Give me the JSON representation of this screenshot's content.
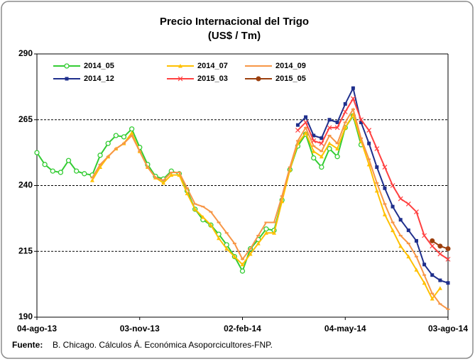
{
  "chart_data": {
    "type": "line",
    "title": "Precio Internacional del Trigo",
    "subtitle": "(US$ / Tm)",
    "source_label": "Fuente:",
    "source": "B. Chicago. Cálculos Á. Económica Asoporcicultores-FNP.",
    "categories": [
      "04-ago-13",
      null,
      null,
      null,
      null,
      null,
      null,
      null,
      null,
      null,
      null,
      null,
      null,
      "03-nov-13",
      null,
      null,
      null,
      null,
      null,
      null,
      null,
      null,
      null,
      null,
      null,
      null,
      "02-feb-14",
      null,
      null,
      null,
      null,
      null,
      null,
      null,
      null,
      null,
      null,
      null,
      null,
      "04-may-14",
      null,
      null,
      null,
      null,
      null,
      null,
      null,
      null,
      null,
      null,
      null,
      null,
      "03-ago-14"
    ],
    "ylim": [
      190,
      290
    ],
    "yticks": [
      190,
      215,
      240,
      265,
      290
    ],
    "grid": true,
    "legend": "top-left",
    "series": [
      {
        "name": "2014_05",
        "color": "#33cc33",
        "marker": "open-circle",
        "values": [
          252.5,
          248,
          245.5,
          245,
          249.5,
          245.5,
          244.5,
          244,
          251.5,
          256,
          259,
          258.5,
          261.5,
          254.5,
          248,
          243.5,
          242.5,
          245.5,
          244.5,
          238,
          231,
          227,
          225,
          221.5,
          217.5,
          213,
          207.5,
          216,
          219.5,
          223.5,
          223,
          234.5,
          246,
          255,
          259.5,
          250.5,
          247,
          254,
          251,
          262,
          266.5,
          255.5,
          null,
          null,
          null,
          null,
          null,
          null,
          null,
          null,
          null,
          null,
          null
        ]
      },
      {
        "name": "2014_07",
        "color": "#ffc000",
        "marker": "triangle",
        "values": [
          null,
          null,
          null,
          null,
          null,
          null,
          null,
          242,
          247,
          251,
          254,
          256,
          260,
          253,
          247,
          243,
          241,
          244,
          244,
          237,
          231,
          228,
          225,
          220,
          216,
          213,
          210,
          214,
          218,
          222,
          222,
          234,
          246,
          256,
          260,
          253,
          251,
          256,
          254,
          262,
          267,
          257,
          248,
          238,
          229,
          223,
          217,
          213,
          208,
          203,
          197,
          201,
          null
        ]
      },
      {
        "name": "2014_09",
        "color": "#f79646",
        "marker": "dash",
        "values": [
          null,
          null,
          null,
          null,
          null,
          null,
          null,
          243,
          248,
          251,
          254,
          256,
          259,
          253,
          247,
          243,
          242,
          245,
          245,
          239,
          233,
          232,
          230,
          226,
          222,
          218,
          212,
          216,
          221,
          226,
          226,
          236,
          247,
          257,
          262,
          255,
          253,
          259,
          256,
          264,
          269,
          258,
          250,
          241,
          233,
          226,
          221,
          218,
          213,
          206,
          199,
          195,
          193
        ]
      },
      {
        "name": "2014_12",
        "color": "#1f2f8c",
        "marker": "square",
        "values": [
          null,
          null,
          null,
          null,
          null,
          null,
          null,
          null,
          null,
          null,
          null,
          null,
          null,
          null,
          null,
          null,
          null,
          null,
          null,
          null,
          null,
          null,
          null,
          null,
          null,
          null,
          null,
          null,
          null,
          null,
          null,
          null,
          null,
          263,
          266,
          259,
          258,
          265,
          264,
          271,
          277,
          264,
          256,
          247,
          239,
          232,
          227,
          223,
          219,
          210,
          206,
          204,
          203
        ]
      },
      {
        "name": "2015_03",
        "color": "#ff4040",
        "marker": "cross",
        "values": [
          null,
          null,
          null,
          null,
          null,
          null,
          null,
          null,
          null,
          null,
          null,
          null,
          null,
          null,
          null,
          null,
          null,
          null,
          null,
          null,
          null,
          null,
          null,
          null,
          null,
          null,
          null,
          null,
          null,
          null,
          null,
          null,
          null,
          261,
          264,
          257,
          256,
          262,
          262,
          268,
          273,
          265,
          261,
          254,
          247,
          240,
          235,
          233,
          230,
          221,
          217,
          214,
          212
        ]
      },
      {
        "name": "2015_05",
        "color": "#9c3f0e",
        "marker": "circle",
        "values": [
          null,
          null,
          null,
          null,
          null,
          null,
          null,
          null,
          null,
          null,
          null,
          null,
          null,
          null,
          null,
          null,
          null,
          null,
          null,
          null,
          null,
          null,
          null,
          null,
          null,
          null,
          null,
          null,
          null,
          null,
          null,
          null,
          null,
          null,
          null,
          null,
          null,
          null,
          null,
          null,
          null,
          null,
          null,
          null,
          null,
          null,
          null,
          null,
          null,
          null,
          219,
          217,
          216
        ]
      }
    ]
  }
}
